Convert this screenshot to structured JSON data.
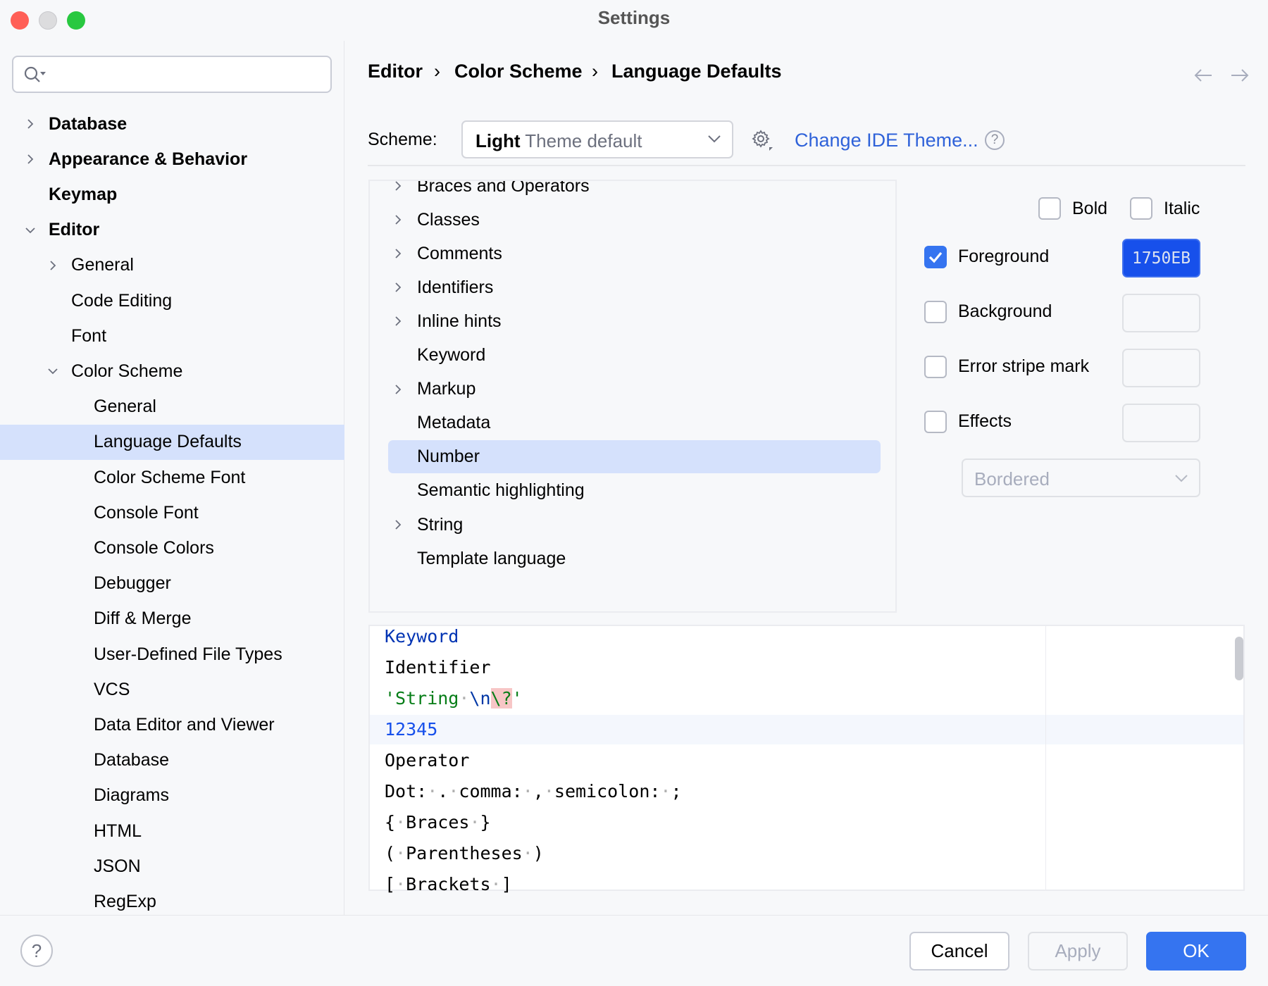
{
  "window": {
    "title": "Settings",
    "traffic_lights": {
      "close": "#ff5f57",
      "minimize": "#dcdcde",
      "zoom": "#28c840"
    }
  },
  "search": {
    "icon": "search-icon",
    "value": "",
    "placeholder": ""
  },
  "sidebar": {
    "items": [
      {
        "label": "Database",
        "level": 0,
        "chevron": "right",
        "bold": true
      },
      {
        "label": "Appearance & Behavior",
        "level": 0,
        "chevron": "right",
        "bold": true
      },
      {
        "label": "Keymap",
        "level": 0,
        "bold": true
      },
      {
        "label": "Editor",
        "level": 0,
        "chevron": "down",
        "bold": true
      },
      {
        "label": "General",
        "level": 1,
        "chevron": "right"
      },
      {
        "label": "Code Editing",
        "level": 1
      },
      {
        "label": "Font",
        "level": 1
      },
      {
        "label": "Color Scheme",
        "level": 1,
        "chevron": "down"
      },
      {
        "label": "General",
        "level": 2
      },
      {
        "label": "Language Defaults",
        "level": 2,
        "selected": true
      },
      {
        "label": "Color Scheme Font",
        "level": 2
      },
      {
        "label": "Console Font",
        "level": 2
      },
      {
        "label": "Console Colors",
        "level": 2
      },
      {
        "label": "Debugger",
        "level": 2
      },
      {
        "label": "Diff & Merge",
        "level": 2
      },
      {
        "label": "User-Defined File Types",
        "level": 2
      },
      {
        "label": "VCS",
        "level": 2
      },
      {
        "label": "Data Editor and Viewer",
        "level": 2
      },
      {
        "label": "Database",
        "level": 2
      },
      {
        "label": "Diagrams",
        "level": 2
      },
      {
        "label": "HTML",
        "level": 2
      },
      {
        "label": "JSON",
        "level": 2
      },
      {
        "label": "RegExp",
        "level": 2
      }
    ]
  },
  "breadcrumb": [
    "Editor",
    "Color Scheme",
    "Language Defaults"
  ],
  "scheme": {
    "label": "Scheme:",
    "value_bold": "Light",
    "value_rest": "Theme default",
    "change_theme_link": "Change IDE Theme...",
    "link_color": "#2f62d9"
  },
  "tree": {
    "items": [
      {
        "label": "Braces and Operators",
        "expandable": true
      },
      {
        "label": "Classes",
        "expandable": true
      },
      {
        "label": "Comments",
        "expandable": true
      },
      {
        "label": "Identifiers",
        "expandable": true
      },
      {
        "label": "Inline hints",
        "expandable": true
      },
      {
        "label": "Keyword"
      },
      {
        "label": "Markup",
        "expandable": true
      },
      {
        "label": "Metadata"
      },
      {
        "label": "Number",
        "selected": true
      },
      {
        "label": "Semantic highlighting"
      },
      {
        "label": "String",
        "expandable": true
      },
      {
        "label": "Template language"
      }
    ]
  },
  "attributes": {
    "bold": {
      "label": "Bold",
      "checked": false
    },
    "italic": {
      "label": "Italic",
      "checked": false
    },
    "foreground": {
      "label": "Foreground",
      "checked": true,
      "color_text": "1750EB",
      "color": "#1750eb"
    },
    "background": {
      "label": "Background",
      "checked": false
    },
    "error_stripe": {
      "label": "Error stripe mark",
      "checked": false
    },
    "effects": {
      "label": "Effects",
      "checked": false,
      "effect_type": "Bordered"
    }
  },
  "preview": {
    "lines": [
      [
        {
          "t": "Keyword",
          "c": "#0033b3"
        }
      ],
      [
        {
          "t": "Identifier",
          "c": "#000000"
        }
      ],
      [
        {
          "t": "'String",
          "c": "#067d17"
        },
        {
          "t": "·",
          "c": "#b0b0b0"
        },
        {
          "t": "\\n",
          "c": "#0037a6"
        },
        {
          "t": "\\?",
          "c": "#067d17",
          "bg": "#f7c6c6"
        },
        {
          "t": "'",
          "c": "#067d17"
        }
      ],
      [
        {
          "t": "12345",
          "c": "#1750eb"
        }
      ],
      [
        {
          "t": "Operator",
          "c": "#000000"
        }
      ],
      [
        {
          "t": "Dot:",
          "c": "#000"
        },
        {
          "t": "·",
          "c": "#b0b0b0"
        },
        {
          "t": ".",
          "c": "#000"
        },
        {
          "t": "·",
          "c": "#b0b0b0"
        },
        {
          "t": "comma:",
          "c": "#000"
        },
        {
          "t": "·",
          "c": "#b0b0b0"
        },
        {
          "t": ",",
          "c": "#000"
        },
        {
          "t": "·",
          "c": "#b0b0b0"
        },
        {
          "t": "semicolon:",
          "c": "#000"
        },
        {
          "t": "·",
          "c": "#b0b0b0"
        },
        {
          "t": ";",
          "c": "#000"
        }
      ],
      [
        {
          "t": "{",
          "c": "#000"
        },
        {
          "t": "·",
          "c": "#b0b0b0"
        },
        {
          "t": "Braces",
          "c": "#000"
        },
        {
          "t": "·",
          "c": "#b0b0b0"
        },
        {
          "t": "}",
          "c": "#000"
        }
      ],
      [
        {
          "t": "(",
          "c": "#000"
        },
        {
          "t": "·",
          "c": "#b0b0b0"
        },
        {
          "t": "Parentheses",
          "c": "#000"
        },
        {
          "t": "·",
          "c": "#b0b0b0"
        },
        {
          "t": ")",
          "c": "#000"
        }
      ],
      [
        {
          "t": "[",
          "c": "#000"
        },
        {
          "t": "·",
          "c": "#b0b0b0"
        },
        {
          "t": "Brackets",
          "c": "#000"
        },
        {
          "t": "·",
          "c": "#b0b0b0"
        },
        {
          "t": "]",
          "c": "#000"
        }
      ]
    ],
    "highlighted_line": 3
  },
  "footer": {
    "cancel": "Cancel",
    "apply": "Apply",
    "ok": "OK",
    "ok_color": "#3574f0"
  }
}
